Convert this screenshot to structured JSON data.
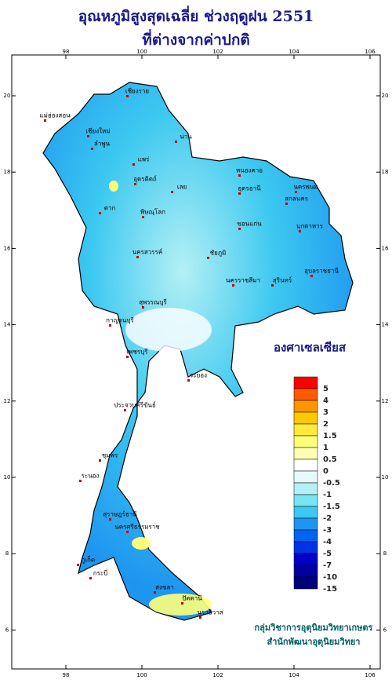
{
  "title": [
    "อุณหภูมิสูงสุดเฉลี่ย ช่วงฤดูฝน 2551",
    "ที่ต่างจากค่าปกติ"
  ],
  "map": {
    "lon_ticks": [
      98,
      100,
      102,
      104,
      106
    ],
    "lat_ticks": [
      20,
      18,
      16,
      14,
      12,
      10,
      8,
      6
    ],
    "places": [
      "เชียงราย",
      "แม่ฮ่องสอน",
      "เชียงใหม่",
      "ลำพูน",
      "น่าน",
      "แพร่",
      "ตาก",
      "อุตรดิตถ์",
      "พิษณุโลก",
      "เลย",
      "หนองคาย",
      "อุดรธานี",
      "นครพนม",
      "สกลนคร",
      "ขอนแก่น",
      "มุกดาหาร",
      "ชัยภูมิ",
      "อุบลราชธานี",
      "นครสวรรค์",
      "นครราชสีมา",
      "สุรินทร์",
      "กาญจนบุรี",
      "สุพรรณบุรี",
      "ระยอง",
      "เพชรบุรี",
      "ประจวบคีรีขันธ์",
      "ชุมพร",
      "ระนอง",
      "สุราษฎร์ธานี",
      "นครศรีธรรมราช",
      "ภูเก็ต",
      "กระบี่",
      "สงขลา",
      "ปัตตานี",
      "นราธิวาส"
    ]
  },
  "legend": {
    "title": "องศาเซลเซียส",
    "items": [
      {
        "label": "5",
        "color": "#ff0000"
      },
      {
        "label": "4",
        "color": "#ff5a00"
      },
      {
        "label": "3",
        "color": "#ff9600"
      },
      {
        "label": "2",
        "color": "#ffc800"
      },
      {
        "label": "1.5",
        "color": "#ffeb3c"
      },
      {
        "label": "1",
        "color": "#ffff78"
      },
      {
        "label": "0.5",
        "color": "#ffffb4"
      },
      {
        "label": "0",
        "color": "#ffffff"
      },
      {
        "label": "-0.5",
        "color": "#e6fafa"
      },
      {
        "label": "-1",
        "color": "#b4f0f5"
      },
      {
        "label": "-1.5",
        "color": "#78e6f0"
      },
      {
        "label": "-2",
        "color": "#3cc8f0"
      },
      {
        "label": "-3",
        "color": "#1e96f0"
      },
      {
        "label": "-4",
        "color": "#0064f0"
      },
      {
        "label": "-5",
        "color": "#0032e6"
      },
      {
        "label": "-7",
        "color": "#0000c8"
      },
      {
        "label": "-10",
        "color": "#0000a0"
      },
      {
        "label": "-15",
        "color": "#000078"
      }
    ]
  },
  "footer": [
    "กลุ่มวิชาการอุตุนิยมวิทยาเกษตร",
    "สำนักพัฒนาอุตุนิยมวิทยา"
  ]
}
